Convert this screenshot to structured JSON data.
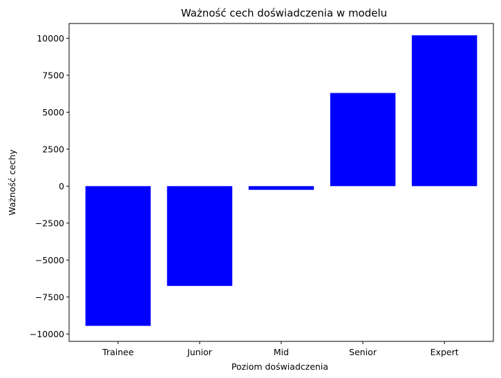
{
  "chart_data": {
    "type": "bar",
    "title": "Ważność cech doświadczenia w modelu",
    "xlabel": "Poziom doświadczenia",
    "ylabel": "Ważność cechy",
    "categories": [
      "Trainee",
      "Junior",
      "Mid",
      "Senior",
      "Expert"
    ],
    "values": [
      -9450,
      -6750,
      -250,
      6300,
      10200
    ],
    "ylim": [
      -10500,
      11000
    ],
    "yticks": [
      -10000,
      -7500,
      -5000,
      -2500,
      0,
      2500,
      5000,
      7500,
      10000
    ],
    "ytick_labels": [
      "−10000",
      "−7500",
      "−5000",
      "−2500",
      "0",
      "2500",
      "5000",
      "7500",
      "10000"
    ],
    "bar_color": "#0000ff",
    "grid": false,
    "legend": false
  }
}
